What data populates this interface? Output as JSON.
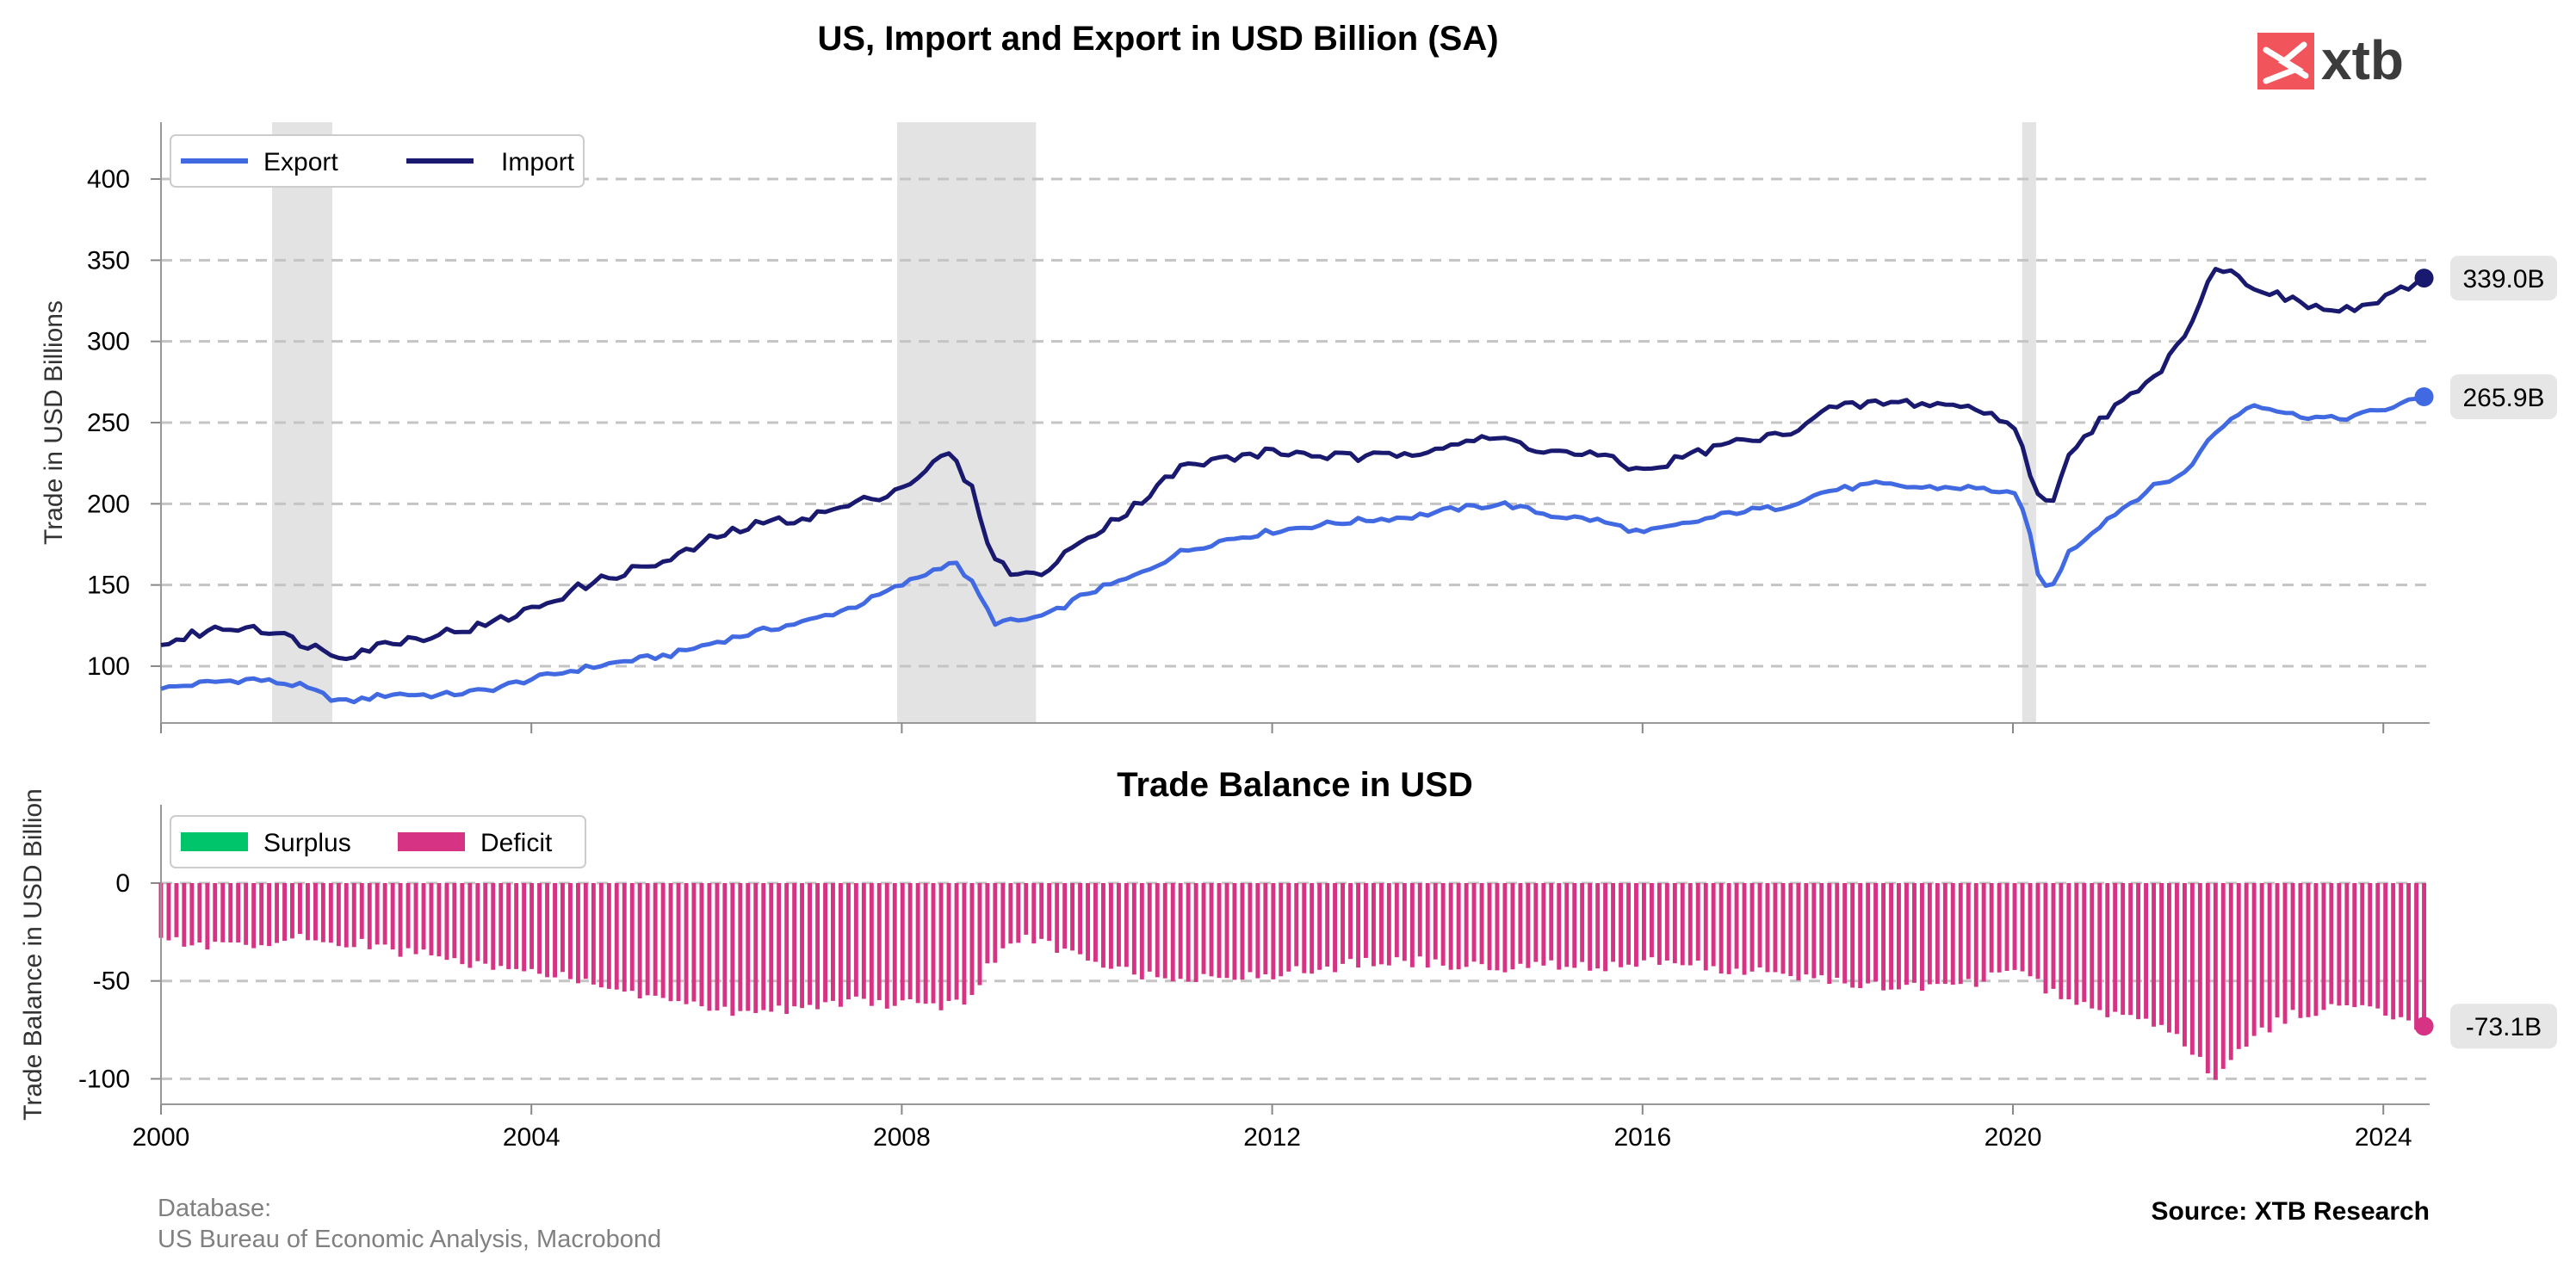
{
  "title": "US, Import and Export in USD Billion (SA)",
  "logo": {
    "text": "xtb",
    "color": "#f2545b"
  },
  "footer": {
    "db_label": "Database:",
    "db_sources": "US Bureau of Economic Analysis, Macrobond",
    "source": "Source: XTB Research"
  },
  "x_ticks": [
    "2000",
    "2004",
    "2008",
    "2012",
    "2016",
    "2020",
    "2024"
  ],
  "chart_data": [
    {
      "type": "line",
      "title": "US, Import and Export in USD Billion (SA)",
      "xlabel": "",
      "ylabel": "Trade in USD Billions",
      "xlim": [
        2000.0,
        2024.5
      ],
      "ylim": [
        65,
        435
      ],
      "y_ticks": [
        100,
        150,
        200,
        250,
        300,
        350,
        400
      ],
      "grid": "horizontal dashed",
      "legend": "top-left",
      "recession_shading": [
        [
          2001.2,
          2001.85
        ],
        [
          2007.95,
          2009.45
        ],
        [
          2020.1,
          2020.25
        ]
      ],
      "series": [
        {
          "name": "Export",
          "color": "#4169e1",
          "points": [
            [
              2000.0,
              86
            ],
            [
              2000.5,
              90
            ],
            [
              2001.0,
              92
            ],
            [
              2001.5,
              88
            ],
            [
              2001.85,
              80
            ],
            [
              2002.0,
              78
            ],
            [
              2002.5,
              83
            ],
            [
              2003.0,
              82
            ],
            [
              2003.5,
              85
            ],
            [
              2004.0,
              92
            ],
            [
              2004.5,
              98
            ],
            [
              2005.0,
              103
            ],
            [
              2005.5,
              107
            ],
            [
              2006.0,
              115
            ],
            [
              2006.5,
              122
            ],
            [
              2007.0,
              128
            ],
            [
              2007.5,
              137
            ],
            [
              2008.0,
              150
            ],
            [
              2008.3,
              158
            ],
            [
              2008.55,
              165
            ],
            [
              2008.75,
              152
            ],
            [
              2009.0,
              127
            ],
            [
              2009.3,
              128
            ],
            [
              2009.6,
              132
            ],
            [
              2010.0,
              145
            ],
            [
              2010.5,
              155
            ],
            [
              2011.0,
              170
            ],
            [
              2011.5,
              178
            ],
            [
              2012.0,
              183
            ],
            [
              2012.5,
              187
            ],
            [
              2013.0,
              190
            ],
            [
              2013.5,
              192
            ],
            [
              2014.0,
              197
            ],
            [
              2014.5,
              200
            ],
            [
              2015.0,
              193
            ],
            [
              2015.5,
              190
            ],
            [
              2016.0,
              182
            ],
            [
              2016.5,
              188
            ],
            [
              2017.0,
              195
            ],
            [
              2017.5,
              198
            ],
            [
              2018.0,
              208
            ],
            [
              2018.5,
              212
            ],
            [
              2019.0,
              210
            ],
            [
              2019.5,
              210
            ],
            [
              2020.0,
              207
            ],
            [
              2020.15,
              190
            ],
            [
              2020.3,
              150
            ],
            [
              2020.4,
              146
            ],
            [
              2020.6,
              170
            ],
            [
              2021.0,
              190
            ],
            [
              2021.5,
              210
            ],
            [
              2021.9,
              220
            ],
            [
              2022.0,
              232
            ],
            [
              2022.3,
              250
            ],
            [
              2022.6,
              262
            ],
            [
              2023.0,
              255
            ],
            [
              2023.5,
              252
            ],
            [
              2024.0,
              258
            ],
            [
              2024.44,
              265.9
            ]
          ]
        },
        {
          "name": "Import",
          "color": "#191970",
          "points": [
            [
              2000.0,
              113
            ],
            [
              2000.5,
              122
            ],
            [
              2001.0,
              125
            ],
            [
              2001.5,
              115
            ],
            [
              2001.85,
              108
            ],
            [
              2002.0,
              107
            ],
            [
              2002.5,
              115
            ],
            [
              2003.0,
              120
            ],
            [
              2003.5,
              125
            ],
            [
              2004.0,
              135
            ],
            [
              2004.5,
              148
            ],
            [
              2005.0,
              158
            ],
            [
              2005.5,
              165
            ],
            [
              2006.0,
              180
            ],
            [
              2006.5,
              188
            ],
            [
              2007.0,
              192
            ],
            [
              2007.5,
              200
            ],
            [
              2008.0,
              210
            ],
            [
              2008.3,
              222
            ],
            [
              2008.5,
              232
            ],
            [
              2008.75,
              210
            ],
            [
              2009.0,
              165
            ],
            [
              2009.3,
              155
            ],
            [
              2009.6,
              160
            ],
            [
              2010.0,
              180
            ],
            [
              2010.5,
              198
            ],
            [
              2011.0,
              222
            ],
            [
              2011.5,
              228
            ],
            [
              2012.0,
              232
            ],
            [
              2012.5,
              230
            ],
            [
              2013.0,
              228
            ],
            [
              2013.5,
              232
            ],
            [
              2014.0,
              238
            ],
            [
              2014.5,
              240
            ],
            [
              2015.0,
              232
            ],
            [
              2015.5,
              230
            ],
            [
              2016.0,
              220
            ],
            [
              2016.5,
              230
            ],
            [
              2017.0,
              238
            ],
            [
              2017.5,
              242
            ],
            [
              2018.0,
              258
            ],
            [
              2018.5,
              262
            ],
            [
              2019.0,
              262
            ],
            [
              2019.5,
              260
            ],
            [
              2020.0,
              250
            ],
            [
              2020.15,
              225
            ],
            [
              2020.3,
              203
            ],
            [
              2020.45,
              200
            ],
            [
              2020.6,
              232
            ],
            [
              2021.0,
              255
            ],
            [
              2021.5,
              275
            ],
            [
              2021.9,
              310
            ],
            [
              2022.0,
              322
            ],
            [
              2022.2,
              348
            ],
            [
              2022.4,
              340
            ],
            [
              2022.7,
              332
            ],
            [
              2023.0,
              325
            ],
            [
              2023.5,
              318
            ],
            [
              2024.0,
              325
            ],
            [
              2024.44,
              339.0
            ]
          ]
        }
      ],
      "end_labels": [
        {
          "series": "Import",
          "text": "339.0B",
          "value": 339.0
        },
        {
          "series": "Export",
          "text": "265.9B",
          "value": 265.9
        }
      ]
    },
    {
      "type": "bar",
      "title": "Trade Balance in USD",
      "xlabel": "",
      "ylabel": "Trade Balance in USD Billion",
      "xlim": [
        2000.0,
        2024.5
      ],
      "ylim": [
        -113,
        40
      ],
      "y_ticks": [
        0,
        -50,
        -100
      ],
      "grid": "horizontal dashed",
      "legend": "top-left",
      "series": [
        {
          "name": "Surplus",
          "color": "#00c56a"
        },
        {
          "name": "Deficit",
          "color": "#d63384",
          "points": [
            [
              2000.0,
              -28
            ],
            [
              2000.5,
              -32
            ],
            [
              2001.0,
              -33
            ],
            [
              2001.5,
              -28
            ],
            [
              2002.0,
              -30
            ],
            [
              2002.5,
              -34
            ],
            [
              2003.0,
              -38
            ],
            [
              2003.5,
              -42
            ],
            [
              2004.0,
              -45
            ],
            [
              2004.5,
              -50
            ],
            [
              2005.0,
              -56
            ],
            [
              2005.5,
              -60
            ],
            [
              2006.0,
              -65
            ],
            [
              2006.5,
              -66
            ],
            [
              2007.0,
              -62
            ],
            [
              2007.5,
              -60
            ],
            [
              2008.0,
              -62
            ],
            [
              2008.4,
              -63
            ],
            [
              2008.7,
              -60
            ],
            [
              2009.0,
              -38
            ],
            [
              2009.3,
              -28
            ],
            [
              2009.6,
              -32
            ],
            [
              2010.0,
              -40
            ],
            [
              2010.5,
              -46
            ],
            [
              2011.0,
              -48
            ],
            [
              2011.5,
              -47
            ],
            [
              2012.0,
              -47
            ],
            [
              2012.5,
              -44
            ],
            [
              2013.0,
              -40
            ],
            [
              2013.5,
              -40
            ],
            [
              2014.0,
              -42
            ],
            [
              2014.5,
              -43
            ],
            [
              2015.0,
              -42
            ],
            [
              2015.5,
              -43
            ],
            [
              2016.0,
              -40
            ],
            [
              2016.5,
              -42
            ],
            [
              2017.0,
              -45
            ],
            [
              2017.5,
              -46
            ],
            [
              2018.0,
              -50
            ],
            [
              2018.5,
              -53
            ],
            [
              2019.0,
              -53
            ],
            [
              2019.5,
              -52
            ],
            [
              2020.0,
              -44
            ],
            [
              2020.3,
              -52
            ],
            [
              2020.5,
              -58
            ],
            [
              2021.0,
              -66
            ],
            [
              2021.5,
              -70
            ],
            [
              2021.9,
              -82
            ],
            [
              2022.0,
              -90
            ],
            [
              2022.2,
              -101
            ],
            [
              2022.4,
              -86
            ],
            [
              2022.7,
              -75
            ],
            [
              2023.0,
              -68
            ],
            [
              2023.5,
              -63
            ],
            [
              2024.0,
              -66
            ],
            [
              2024.3,
              -71
            ],
            [
              2024.44,
              -73.1
            ]
          ]
        }
      ],
      "end_labels": [
        {
          "series": "Deficit",
          "text": "-73.1B",
          "value": -73.1
        }
      ]
    }
  ]
}
